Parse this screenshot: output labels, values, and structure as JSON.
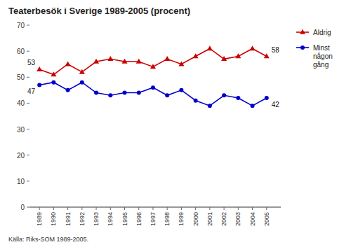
{
  "chart_data": {
    "type": "line",
    "title": "Teaterbesök i Sverige 1989-2005 (procent)",
    "x": [
      1989,
      1990,
      1991,
      1992,
      1993,
      1994,
      1995,
      1996,
      1997,
      1998,
      1999,
      2000,
      2001,
      2002,
      2003,
      2004,
      2005
    ],
    "xlim": [
      1988.3,
      2006.0
    ],
    "xticks": [
      1989,
      1990,
      1991,
      1992,
      1993,
      1994,
      1995,
      1996,
      1997,
      1998,
      1999,
      2000,
      2001,
      2002,
      2003,
      2004,
      2005
    ],
    "ylim": [
      0,
      70
    ],
    "yticks": [
      0,
      10,
      20,
      30,
      40,
      50,
      60,
      70
    ],
    "series": [
      {
        "name": "Aldrig",
        "color": "#cc0000",
        "marker": "triangle",
        "values": [
          53,
          51,
          55,
          52,
          56,
          57,
          56,
          56,
          54,
          57,
          55,
          58,
          61,
          57,
          58,
          61,
          58
        ]
      },
      {
        "name": "Minst\nnågon\ngång",
        "color": "#0000cc",
        "marker": "circle",
        "values": [
          47,
          48,
          45,
          48,
          44,
          43,
          44,
          44,
          46,
          43,
          45,
          41,
          39,
          43,
          42,
          39,
          42
        ]
      }
    ],
    "annotations": [
      {
        "text": "53",
        "x": 1989,
        "y": 53
      },
      {
        "text": "58",
        "x": 2005,
        "y": 58
      },
      {
        "text": "47",
        "x": 1989,
        "y": 47
      },
      {
        "text": "42",
        "x": 2005,
        "y": 42
      }
    ],
    "source": "Källa: Riks-SOM 1989-2005.",
    "grid": false,
    "legend": "upper right"
  }
}
